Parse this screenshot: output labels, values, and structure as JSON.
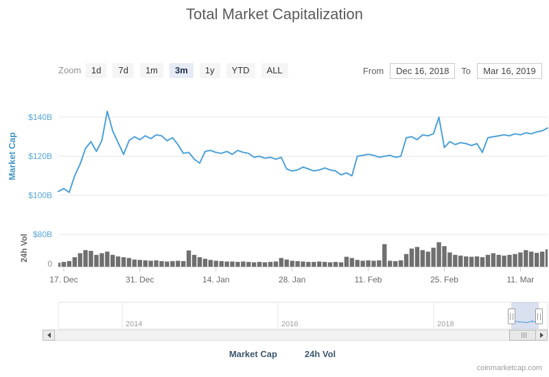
{
  "title": "Total Market Capitalization",
  "range_selector": {
    "zoom_label": "Zoom",
    "buttons": [
      "1d",
      "7d",
      "1m",
      "3m",
      "1y",
      "YTD",
      "ALL"
    ],
    "selected": "3m",
    "from_label": "From",
    "from_value": "Dec 16, 2018",
    "to_label": "To",
    "to_value": "Mar 16, 2019"
  },
  "chart_data": {
    "type": "line",
    "title": "Total Market Capitalization",
    "start_date": "Dec 16, 2018",
    "end_date": "Mar 16, 2019",
    "interval": "daily",
    "grid": true,
    "legend_position": "bottom",
    "x_tick_labels": [
      "17. Dec",
      "31. Dec",
      "14. Jan",
      "28. Jan",
      "11. Feb",
      "25. Feb",
      "11. Mar"
    ],
    "x_tick_day_index": [
      1,
      15,
      29,
      43,
      57,
      71,
      85
    ],
    "series": [
      {
        "name": "Market Cap",
        "type": "line",
        "units": "USD billions",
        "axis_title": "Market Cap",
        "y_ticks": [
          {
            "label": "$140B",
            "value": 140
          },
          {
            "label": "$120B",
            "value": 120
          },
          {
            "label": "$100B",
            "value": 100
          },
          {
            "label": "$80B",
            "value": 80
          }
        ],
        "ylim": [
          80,
          150
        ],
        "values": [
          102,
          103.5,
          101.5,
          110,
          116,
          124,
          127.5,
          122.5,
          128,
          143,
          133,
          127,
          121,
          128,
          130,
          128.5,
          130.5,
          129,
          131,
          130.5,
          128,
          129.5,
          126,
          121.5,
          122,
          118.5,
          116.5,
          122.5,
          123,
          122,
          121.5,
          122.5,
          121,
          123,
          122,
          121.5,
          119.5,
          120,
          119,
          119.5,
          118.5,
          119.5,
          113.5,
          112.5,
          113,
          114.5,
          113.5,
          112.5,
          113,
          114,
          113,
          112.5,
          110.5,
          111.5,
          110,
          120,
          120.5,
          121,
          120.5,
          119.5,
          120,
          120.5,
          119.5,
          120,
          129.5,
          130,
          128.5,
          131,
          130.5,
          131.5,
          140,
          124.5,
          127.5,
          126,
          127,
          126.5,
          125.5,
          126.5,
          122,
          129.5,
          130,
          130.5,
          131,
          130.5,
          131.5,
          131,
          132,
          131.5,
          132.5,
          133,
          134.5
        ]
      },
      {
        "name": "24h Vol",
        "type": "column",
        "units": "USD billions",
        "axis_title": "24h Vol",
        "y_ticks": [
          {
            "label": "0",
            "value": 0
          }
        ],
        "ylim": [
          0,
          80
        ],
        "values": [
          10,
          12,
          14,
          24,
          34,
          42,
          40,
          30,
          34,
          38,
          30,
          26,
          24,
          22,
          18,
          17,
          16,
          15,
          16,
          14,
          13,
          14,
          15,
          14,
          41,
          30,
          24,
          20,
          17,
          15,
          14,
          13,
          13,
          12,
          13,
          12,
          11,
          12,
          11,
          12,
          13,
          22,
          18,
          15,
          14,
          13,
          12,
          12,
          13,
          12,
          11,
          12,
          11,
          25,
          22,
          17,
          15,
          16,
          15,
          16,
          57,
          15,
          14,
          16,
          32,
          46,
          50,
          42,
          38,
          48,
          62,
          52,
          36,
          30,
          28,
          26,
          25,
          26,
          24,
          30,
          34,
          30,
          28,
          30,
          32,
          36,
          42,
          38,
          35,
          38,
          44
        ]
      }
    ]
  },
  "navigator": {
    "year_labels": [
      "2014",
      "2016",
      "2018"
    ],
    "selected_range": "3m"
  },
  "legend": {
    "items": [
      {
        "label": "Market Cap",
        "marker": "line"
      },
      {
        "label": "24h Vol",
        "marker": "circle"
      }
    ]
  },
  "credit": "coinmarketcap.com",
  "colors": {
    "market_cap_line": "#4A9FD8",
    "volume_fill": "#6F6F6F",
    "axis_label_blue": "#56A5D6",
    "axis_title_blue": "#4697CA",
    "axis_title_gray": "#666666",
    "grid": "#E6E6E6",
    "x_label": "#666666",
    "navigator_mask": "#6685C2",
    "legend_text": "#3E576F"
  }
}
